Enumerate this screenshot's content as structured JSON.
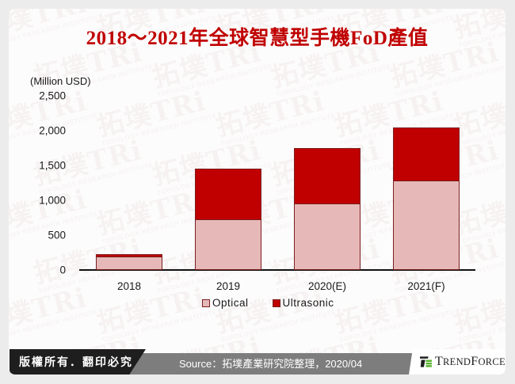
{
  "title": "2018～2021年全球智慧型手機FoD產值",
  "chart_data": {
    "type": "bar",
    "stacked": true,
    "title": "2018～2021年全球智慧型手機FoD產值",
    "xlabel": "",
    "ylabel": "(Million USD)",
    "ylim": [
      0,
      2500
    ],
    "yticks": [
      "0",
      "500",
      "1,000",
      "1,500",
      "2,000",
      "2,500"
    ],
    "categories": [
      "2018",
      "2019",
      "2020(E)",
      "2021(F)"
    ],
    "series": [
      {
        "name": "Optical",
        "color": "#e6b9b8",
        "values": [
          190,
          730,
          960,
          1280
        ]
      },
      {
        "name": "Ultrasonic",
        "color": "#c00000",
        "values": [
          40,
          720,
          790,
          760
        ]
      }
    ],
    "totals": [
      230,
      1450,
      1750,
      2040
    ],
    "grid": false,
    "legend_position": "bottom"
  },
  "legend": {
    "items": [
      {
        "label": "Optical",
        "color": "#e6b9b8"
      },
      {
        "label": "Ultrasonic",
        "color": "#c00000"
      }
    ]
  },
  "footer": {
    "copyright": "版權所有．翻印必究",
    "source": "Source：拓墣產業研究院整理，2020/04",
    "logo_text": "TrendForce"
  },
  "watermark": {
    "text": "拓墣TRi",
    "subtext": "TOPOLOGY RESEARCH INSTITUTE"
  },
  "colors": {
    "title": "#c00000",
    "optical": "#e6b9b8",
    "ultrasonic": "#c00000",
    "logo_green": "#5cb531"
  }
}
